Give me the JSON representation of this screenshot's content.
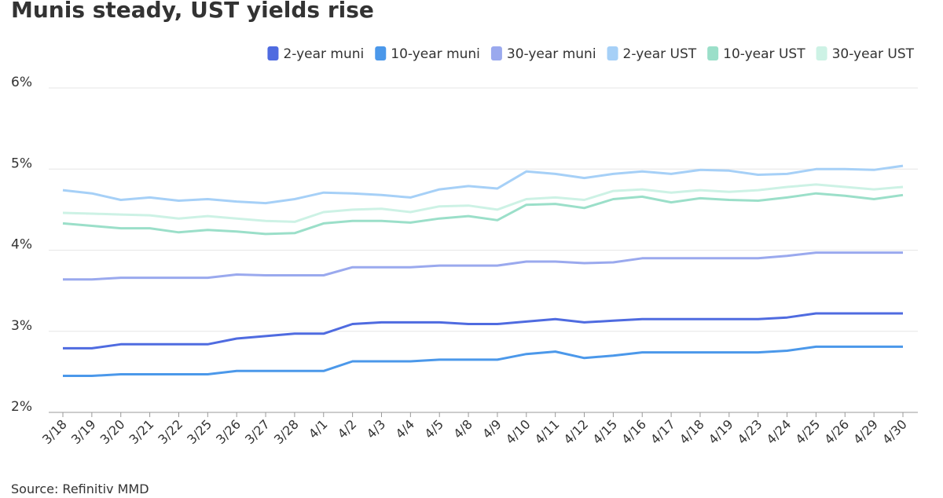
{
  "chart_data": {
    "type": "line",
    "title": "Munis steady, UST yields rise",
    "source": "Source: Refinitiv MMD",
    "categories": [
      "3/18",
      "3/19",
      "3/20",
      "3/21",
      "3/22",
      "3/25",
      "3/26",
      "3/27",
      "3/28",
      "4/1",
      "4/2",
      "4/3",
      "4/4",
      "4/5",
      "4/8",
      "4/9",
      "4/10",
      "4/11",
      "4/12",
      "4/15",
      "4/16",
      "4/17",
      "4/18",
      "4/19",
      "4/23",
      "4/24",
      "4/25",
      "4/26",
      "4/29",
      "4/30"
    ],
    "series": [
      {
        "name": "2-year muni",
        "color": "#4f6be0",
        "values": [
          2.79,
          2.79,
          2.84,
          2.84,
          2.84,
          2.84,
          2.91,
          2.94,
          2.97,
          2.97,
          3.09,
          3.11,
          3.11,
          3.11,
          3.09,
          3.09,
          3.12,
          3.15,
          3.11,
          3.13,
          3.15,
          3.15,
          3.15,
          3.15,
          3.15,
          3.17,
          3.22,
          3.22,
          3.22,
          3.22
        ]
      },
      {
        "name": "10-year muni",
        "color": "#4b98ea",
        "values": [
          2.45,
          2.45,
          2.47,
          2.47,
          2.47,
          2.47,
          2.51,
          2.51,
          2.51,
          2.51,
          2.63,
          2.63,
          2.63,
          2.65,
          2.65,
          2.65,
          2.72,
          2.75,
          2.67,
          2.7,
          2.74,
          2.74,
          2.74,
          2.74,
          2.74,
          2.76,
          2.81,
          2.81,
          2.81,
          2.81
        ]
      },
      {
        "name": "30-year muni",
        "color": "#9aa9ee",
        "values": [
          3.64,
          3.64,
          3.66,
          3.66,
          3.66,
          3.66,
          3.7,
          3.69,
          3.69,
          3.69,
          3.79,
          3.79,
          3.79,
          3.81,
          3.81,
          3.81,
          3.86,
          3.86,
          3.84,
          3.85,
          3.9,
          3.9,
          3.9,
          3.9,
          3.9,
          3.93,
          3.97,
          3.97,
          3.97,
          3.97
        ]
      },
      {
        "name": "2-year UST",
        "color": "#a6d0f7",
        "values": [
          4.74,
          4.7,
          4.62,
          4.65,
          4.61,
          4.63,
          4.6,
          4.58,
          4.63,
          4.71,
          4.7,
          4.68,
          4.65,
          4.75,
          4.79,
          4.76,
          4.97,
          4.94,
          4.89,
          4.94,
          4.97,
          4.94,
          4.99,
          4.98,
          4.93,
          4.94,
          5.0,
          5.0,
          4.99,
          5.04
        ]
      },
      {
        "name": "10-year UST",
        "color": "#9bdfc9",
        "values": [
          4.33,
          4.3,
          4.27,
          4.27,
          4.22,
          4.25,
          4.23,
          4.2,
          4.21,
          4.33,
          4.36,
          4.36,
          4.34,
          4.39,
          4.42,
          4.37,
          4.56,
          4.57,
          4.52,
          4.63,
          4.66,
          4.59,
          4.64,
          4.62,
          4.61,
          4.65,
          4.7,
          4.67,
          4.63,
          4.68
        ]
      },
      {
        "name": "30-year UST",
        "color": "#cdf2e5",
        "values": [
          4.46,
          4.45,
          4.44,
          4.43,
          4.39,
          4.42,
          4.39,
          4.36,
          4.35,
          4.47,
          4.5,
          4.51,
          4.47,
          4.54,
          4.55,
          4.5,
          4.63,
          4.65,
          4.62,
          4.73,
          4.75,
          4.71,
          4.74,
          4.72,
          4.74,
          4.78,
          4.81,
          4.78,
          4.75,
          4.78
        ]
      }
    ],
    "ylim": [
      2,
      6
    ],
    "yticks": [
      {
        "value": 2,
        "label": "2%"
      },
      {
        "value": 3,
        "label": "3%"
      },
      {
        "value": 4,
        "label": "4%"
      },
      {
        "value": 5,
        "label": "5%"
      },
      {
        "value": 6,
        "label": "6%"
      }
    ],
    "grid": true
  }
}
